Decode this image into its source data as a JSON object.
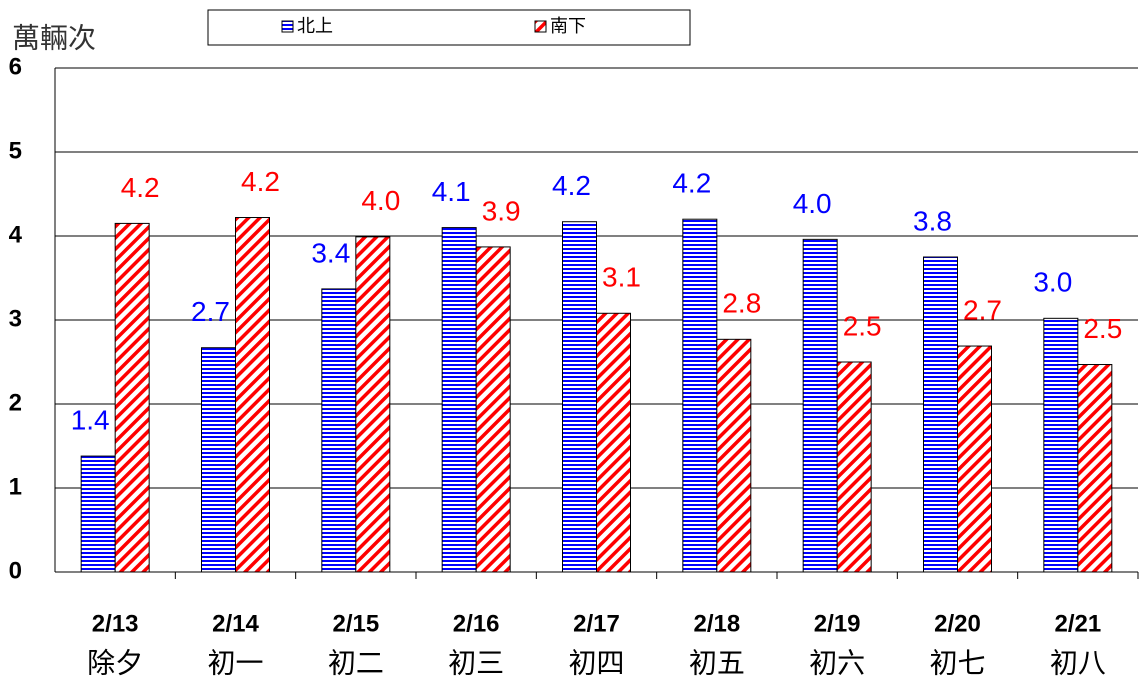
{
  "chart_data": {
    "type": "bar",
    "ylabel": "萬輛次",
    "categories": [
      "2/13",
      "2/14",
      "2/15",
      "2/16",
      "2/17",
      "2/18",
      "2/19",
      "2/20",
      "2/21"
    ],
    "category_sublabels": [
      "除夕",
      "初一",
      "初二",
      "初三",
      "初四",
      "初五",
      "初六",
      "初七",
      "初八"
    ],
    "series": [
      {
        "name": "北上",
        "color": "#0000ff",
        "values": [
          1.38,
          2.67,
          3.37,
          4.1,
          4.17,
          4.2,
          3.96,
          3.75,
          3.02
        ],
        "value_labels": [
          "1.4",
          "2.7",
          "3.4",
          "4.1",
          "4.2",
          "4.2",
          "4.0",
          "3.8",
          "3.0"
        ]
      },
      {
        "name": "南下",
        "color": "#ff0000",
        "values": [
          4.15,
          4.22,
          3.99,
          3.87,
          3.08,
          2.77,
          2.5,
          2.69,
          2.47
        ],
        "value_labels": [
          "4.2",
          "4.2",
          "4.0",
          "3.9",
          "3.1",
          "2.8",
          "2.5",
          "2.7",
          "2.5"
        ]
      }
    ],
    "ylim": [
      0,
      6
    ],
    "yticks": [
      0,
      1,
      2,
      3,
      4,
      5,
      6
    ],
    "grid": true,
    "legend": "top"
  }
}
